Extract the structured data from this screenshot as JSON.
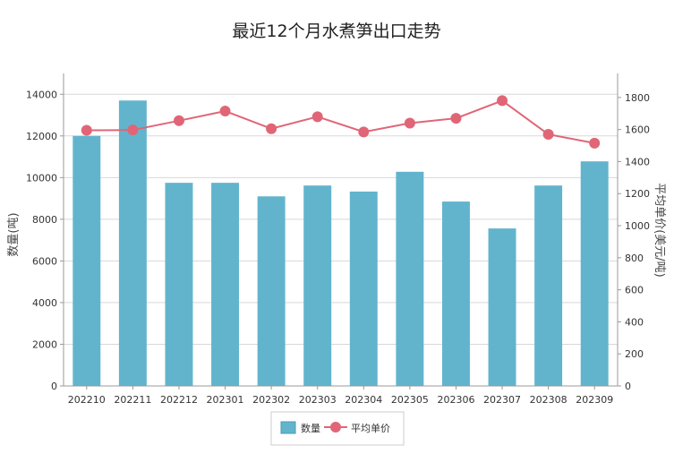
{
  "chart_data": {
    "type": "bar",
    "title": "最近12个月水煮笋出口走势",
    "categories": [
      "202210",
      "202211",
      "202212",
      "202301",
      "202302",
      "202303",
      "202304",
      "202305",
      "202306",
      "202307",
      "202308",
      "202309"
    ],
    "series": [
      {
        "name": "数量",
        "type": "bar",
        "axis": "left",
        "color": "#62b4cd",
        "values": [
          12000,
          13700,
          9750,
          9750,
          9100,
          9620,
          9330,
          10280,
          8850,
          7560,
          9620,
          10780
        ]
      },
      {
        "name": "平均单价",
        "type": "line",
        "axis": "right",
        "color": "#e06677",
        "values": [
          1595,
          1597,
          1655,
          1715,
          1605,
          1680,
          1585,
          1640,
          1670,
          1780,
          1570,
          1515
        ]
      }
    ],
    "ylabel": "数量(吨)",
    "y2label": "平均单价(美元/吨)",
    "ylim": [
      0,
      15000
    ],
    "y2lim": [
      0,
      1950
    ],
    "yticks": [
      0,
      2000,
      4000,
      6000,
      8000,
      10000,
      12000,
      14000
    ],
    "y2ticks": [
      0,
      200,
      400,
      600,
      800,
      1000,
      1200,
      1400,
      1600,
      1800
    ],
    "grid": true,
    "legend": "bottom"
  }
}
